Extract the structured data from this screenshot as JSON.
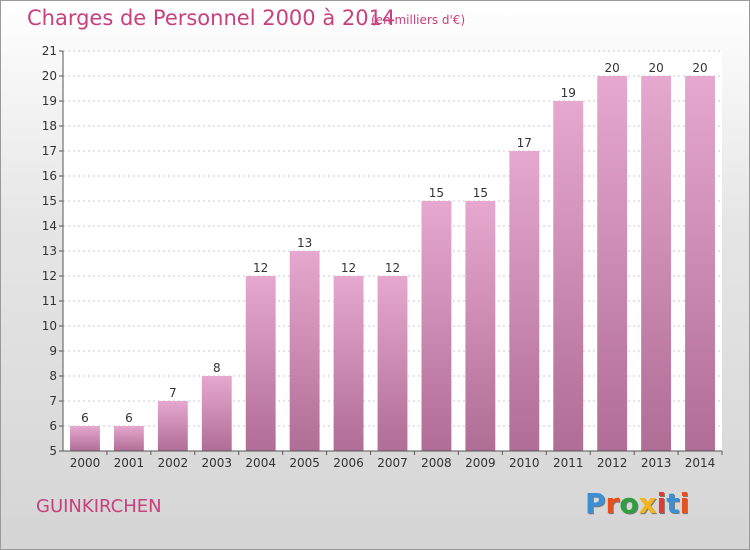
{
  "header": {
    "title": "Charges de Personnel 2000 à 2014",
    "subtitle": "(en milliers d'€)"
  },
  "footer": {
    "commune": "GUINKIRCHEN",
    "logo_text": "Proxiti"
  },
  "colors": {
    "text_accent": "#c8407e",
    "bar_top": "#e6a8cf",
    "bar_bottom": "#b06d96",
    "logo_letters": [
      "#3a8fd6",
      "#e94e1b",
      "#2e9e3e",
      "#f2b51d",
      "#e23b2e",
      "#3a8fd6",
      "#e94e1b"
    ]
  },
  "chart_data": {
    "type": "bar",
    "title": "Charges de Personnel 2000 à 2014",
    "xlabel": "",
    "ylabel": "",
    "ylim": [
      5,
      21
    ],
    "yticks": [
      5,
      6,
      7,
      8,
      9,
      10,
      11,
      12,
      13,
      14,
      15,
      16,
      17,
      18,
      19,
      20,
      21
    ],
    "grid": "horizontal-dotted",
    "categories": [
      "2000",
      "2001",
      "2002",
      "2003",
      "2004",
      "2005",
      "2006",
      "2007",
      "2008",
      "2009",
      "2010",
      "2011",
      "2012",
      "2013",
      "2014"
    ],
    "values": [
      6,
      6,
      7,
      8,
      12,
      13,
      12,
      12,
      15,
      15,
      17,
      19,
      20,
      20,
      20
    ]
  }
}
